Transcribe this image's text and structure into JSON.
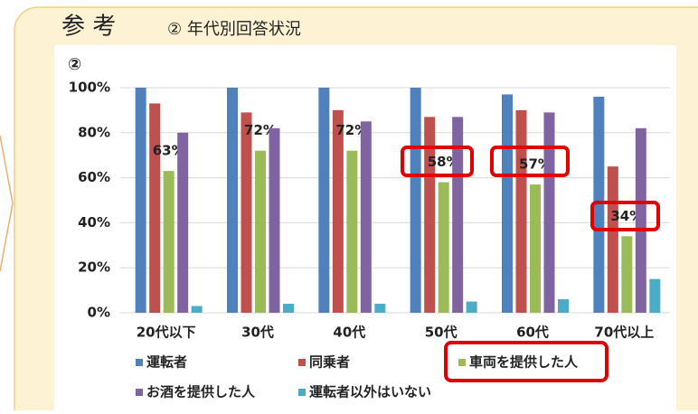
{
  "chart_data": {
    "type": "bar",
    "header": "参 考",
    "title": "② 年代別回答状況",
    "chart_label": "②",
    "categories": [
      "20代以下",
      "30代",
      "40代",
      "50代",
      "60代",
      "70代以上"
    ],
    "series": [
      {
        "name": "運転者",
        "color": "#4f81bd",
        "values": [
          100,
          100,
          100,
          100,
          97,
          96
        ]
      },
      {
        "name": "同乗者",
        "color": "#c0504d",
        "values": [
          93,
          89,
          90,
          87,
          90,
          65
        ]
      },
      {
        "name": "車両を提供した人",
        "color": "#9bbb59",
        "values": [
          63,
          72,
          72,
          58,
          57,
          34
        ],
        "value_labels": [
          "63%",
          "72%",
          "72%",
          "58%",
          "57%",
          "34%"
        ]
      },
      {
        "name": "お酒を提供した人",
        "color": "#8064a2",
        "values": [
          80,
          82,
          85,
          87,
          89,
          82
        ]
      },
      {
        "name": "運転者以外はいない",
        "color": "#4bacc6",
        "values": [
          3,
          4,
          4,
          5,
          6,
          15
        ]
      }
    ],
    "ylim": [
      0,
      100
    ],
    "yticks": [
      {
        "value": 0,
        "label": "0%"
      },
      {
        "value": 20,
        "label": "20%"
      },
      {
        "value": 40,
        "label": "40%"
      },
      {
        "value": 60,
        "label": "60%"
      },
      {
        "value": 80,
        "label": "80%"
      },
      {
        "value": 100,
        "label": "100%"
      }
    ],
    "grid": true
  }
}
